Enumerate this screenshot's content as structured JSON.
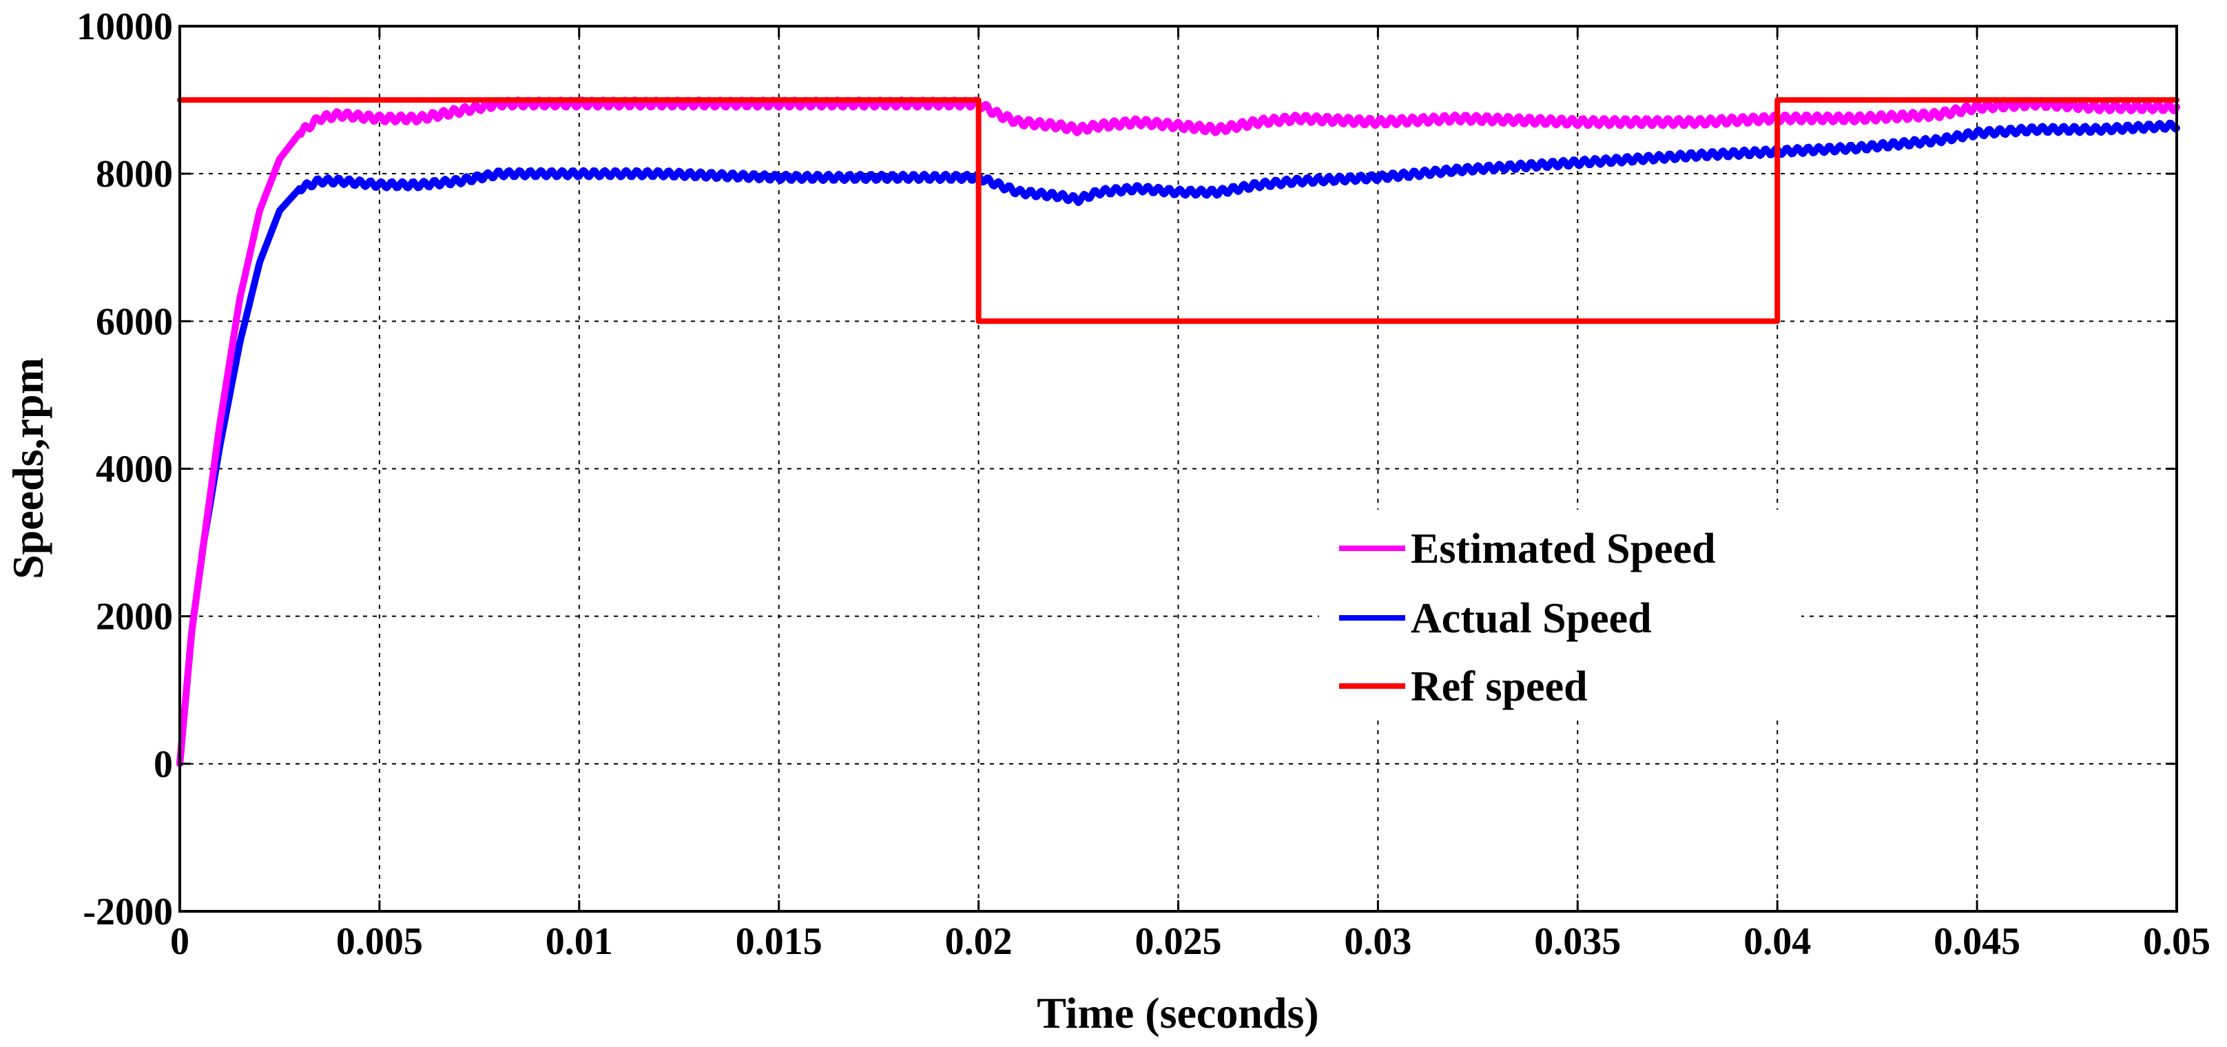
{
  "chart_data": {
    "type": "line",
    "title": "",
    "xlabel": "Time (seconds)",
    "ylabel": "Speeds,rpm",
    "xlim": [
      0,
      0.05
    ],
    "ylim": [
      -2000,
      10000
    ],
    "grid": true,
    "legend_position": "center-right",
    "x_ticks": [
      0,
      0.005,
      0.01,
      0.015,
      0.02,
      0.025,
      0.03,
      0.035,
      0.04,
      0.045,
      0.05
    ],
    "x_tick_labels": [
      "0",
      "0.005",
      "0.01",
      "0.015",
      "0.02",
      "0.025",
      "0.03",
      "0.035",
      "0.04",
      "0.045",
      "0.05"
    ],
    "y_ticks": [
      -2000,
      0,
      2000,
      4000,
      6000,
      8000,
      10000
    ],
    "y_tick_labels": [
      "-2000",
      "0",
      "2000",
      "4000",
      "6000",
      "8000",
      "10000"
    ],
    "series": [
      {
        "name": "Estimated Speed",
        "color": "#ff00ff",
        "ripple": 80,
        "x": [
          0,
          0.0003,
          0.0006,
          0.001,
          0.0015,
          0.002,
          0.0025,
          0.003,
          0.0035,
          0.004,
          0.005,
          0.006,
          0.007,
          0.008,
          0.01,
          0.012,
          0.015,
          0.018,
          0.02,
          0.0205,
          0.021,
          0.022,
          0.0225,
          0.023,
          0.024,
          0.025,
          0.026,
          0.027,
          0.028,
          0.03,
          0.032,
          0.035,
          0.038,
          0.04,
          0.042,
          0.044,
          0.045,
          0.0465,
          0.048,
          0.05
        ],
        "y": [
          0,
          1800,
          3000,
          4600,
          6300,
          7500,
          8200,
          8550,
          8750,
          8800,
          8750,
          8750,
          8850,
          8950,
          8950,
          8950,
          8950,
          8950,
          8950,
          8800,
          8700,
          8650,
          8600,
          8650,
          8700,
          8650,
          8600,
          8700,
          8750,
          8700,
          8750,
          8700,
          8700,
          8750,
          8750,
          8800,
          8900,
          8950,
          8900,
          8900
        ]
      },
      {
        "name": "Actual Speed",
        "color": "#0000ff",
        "ripple": 70,
        "x": [
          0,
          0.0003,
          0.0006,
          0.001,
          0.0015,
          0.002,
          0.0025,
          0.003,
          0.0035,
          0.004,
          0.005,
          0.006,
          0.007,
          0.008,
          0.01,
          0.012,
          0.015,
          0.018,
          0.02,
          0.0205,
          0.021,
          0.022,
          0.0225,
          0.023,
          0.024,
          0.025,
          0.026,
          0.027,
          0.028,
          0.03,
          0.032,
          0.035,
          0.038,
          0.04,
          0.042,
          0.044,
          0.045,
          0.0465,
          0.048,
          0.05
        ],
        "y": [
          0,
          1800,
          3000,
          4300,
          5700,
          6800,
          7500,
          7800,
          7900,
          7900,
          7850,
          7850,
          7900,
          8000,
          8000,
          8000,
          7950,
          7950,
          7950,
          7850,
          7750,
          7700,
          7650,
          7750,
          7800,
          7750,
          7750,
          7850,
          7900,
          7950,
          8050,
          8150,
          8250,
          8300,
          8350,
          8450,
          8550,
          8600,
          8600,
          8650
        ]
      },
      {
        "name": "Ref speed",
        "color": "#ff0000",
        "ripple": 0,
        "x": [
          0,
          0.02,
          0.02,
          0.04,
          0.04,
          0.05
        ],
        "y": [
          9000,
          9000,
          6000,
          6000,
          9000,
          9000
        ]
      }
    ]
  }
}
